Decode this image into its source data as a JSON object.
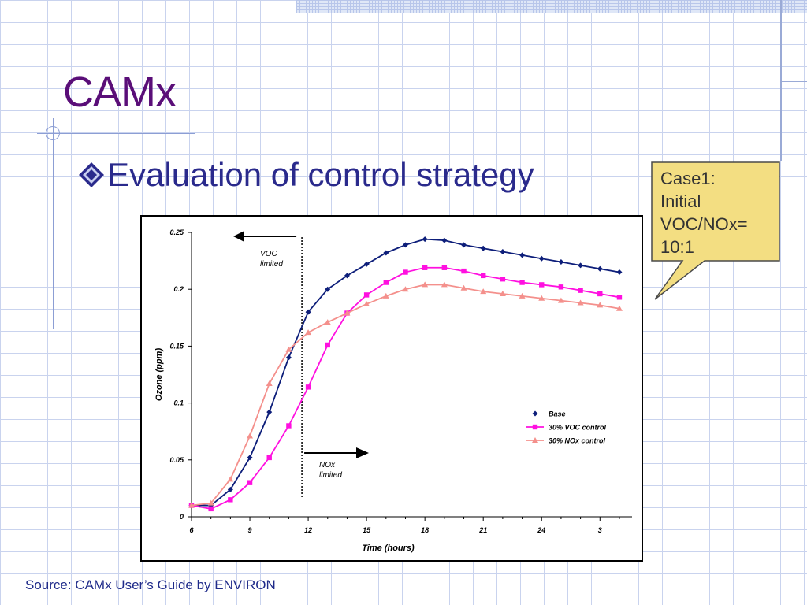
{
  "slide": {
    "title": "CAMx",
    "bullet": "Evaluation of control strategy",
    "callout_lines": [
      "Case1:",
      "Initial",
      "VOC/NOx=",
      "10:1"
    ],
    "source": "Source: CAMx User’s Guide by ENVIRON"
  },
  "colors": {
    "title": "#5a0e78",
    "bullet_text": "#2a2a8c",
    "callout_fill": "#f3de82",
    "source_text": "#1f2b8a"
  },
  "chart_data": {
    "type": "line",
    "xlabel": "Time (hours)",
    "ylabel": "Ozone (ppm)",
    "x_ticks": [
      "6",
      "9",
      "12",
      "15",
      "18",
      "21",
      "24",
      "3"
    ],
    "y_ticks": [
      "0",
      "0.05",
      "0.1",
      "0.15",
      "0.2",
      "0.25"
    ],
    "ylim": [
      0,
      0.25
    ],
    "x_hours": [
      6,
      7,
      8,
      9,
      10,
      11,
      12,
      13,
      14,
      15,
      16,
      17,
      18,
      19,
      20,
      21,
      22,
      23,
      24,
      25,
      26,
      27,
      28
    ],
    "legend_position": "center-right",
    "series": [
      {
        "name": "Base",
        "color": "#0d1e7a",
        "marker": "diamond",
        "values": [
          0.01,
          0.01,
          0.024,
          0.052,
          0.092,
          0.14,
          0.18,
          0.2,
          0.212,
          0.222,
          0.232,
          0.239,
          0.244,
          0.243,
          0.239,
          0.236,
          0.233,
          0.23,
          0.227,
          0.224,
          0.221,
          0.218,
          0.215
        ]
      },
      {
        "name": "30% VOC control",
        "color": "#ff10e0",
        "marker": "square",
        "values": [
          0.01,
          0.007,
          0.015,
          0.03,
          0.052,
          0.08,
          0.114,
          0.151,
          0.179,
          0.195,
          0.206,
          0.215,
          0.219,
          0.219,
          0.216,
          0.212,
          0.209,
          0.206,
          0.204,
          0.202,
          0.199,
          0.196,
          0.193
        ]
      },
      {
        "name": "30% NOx control",
        "color": "#f4908c",
        "marker": "triangle",
        "values": [
          0.01,
          0.012,
          0.033,
          0.071,
          0.117,
          0.147,
          0.162,
          0.171,
          0.179,
          0.187,
          0.194,
          0.2,
          0.204,
          0.204,
          0.201,
          0.198,
          0.196,
          0.194,
          0.192,
          0.19,
          0.188,
          0.186,
          0.183
        ]
      }
    ],
    "divider_x": 12,
    "annotations": [
      {
        "text_lines": [
          "VOC",
          "limited"
        ],
        "arrow": "left"
      },
      {
        "text_lines": [
          "NOx",
          "limited"
        ],
        "arrow": "right"
      }
    ]
  }
}
